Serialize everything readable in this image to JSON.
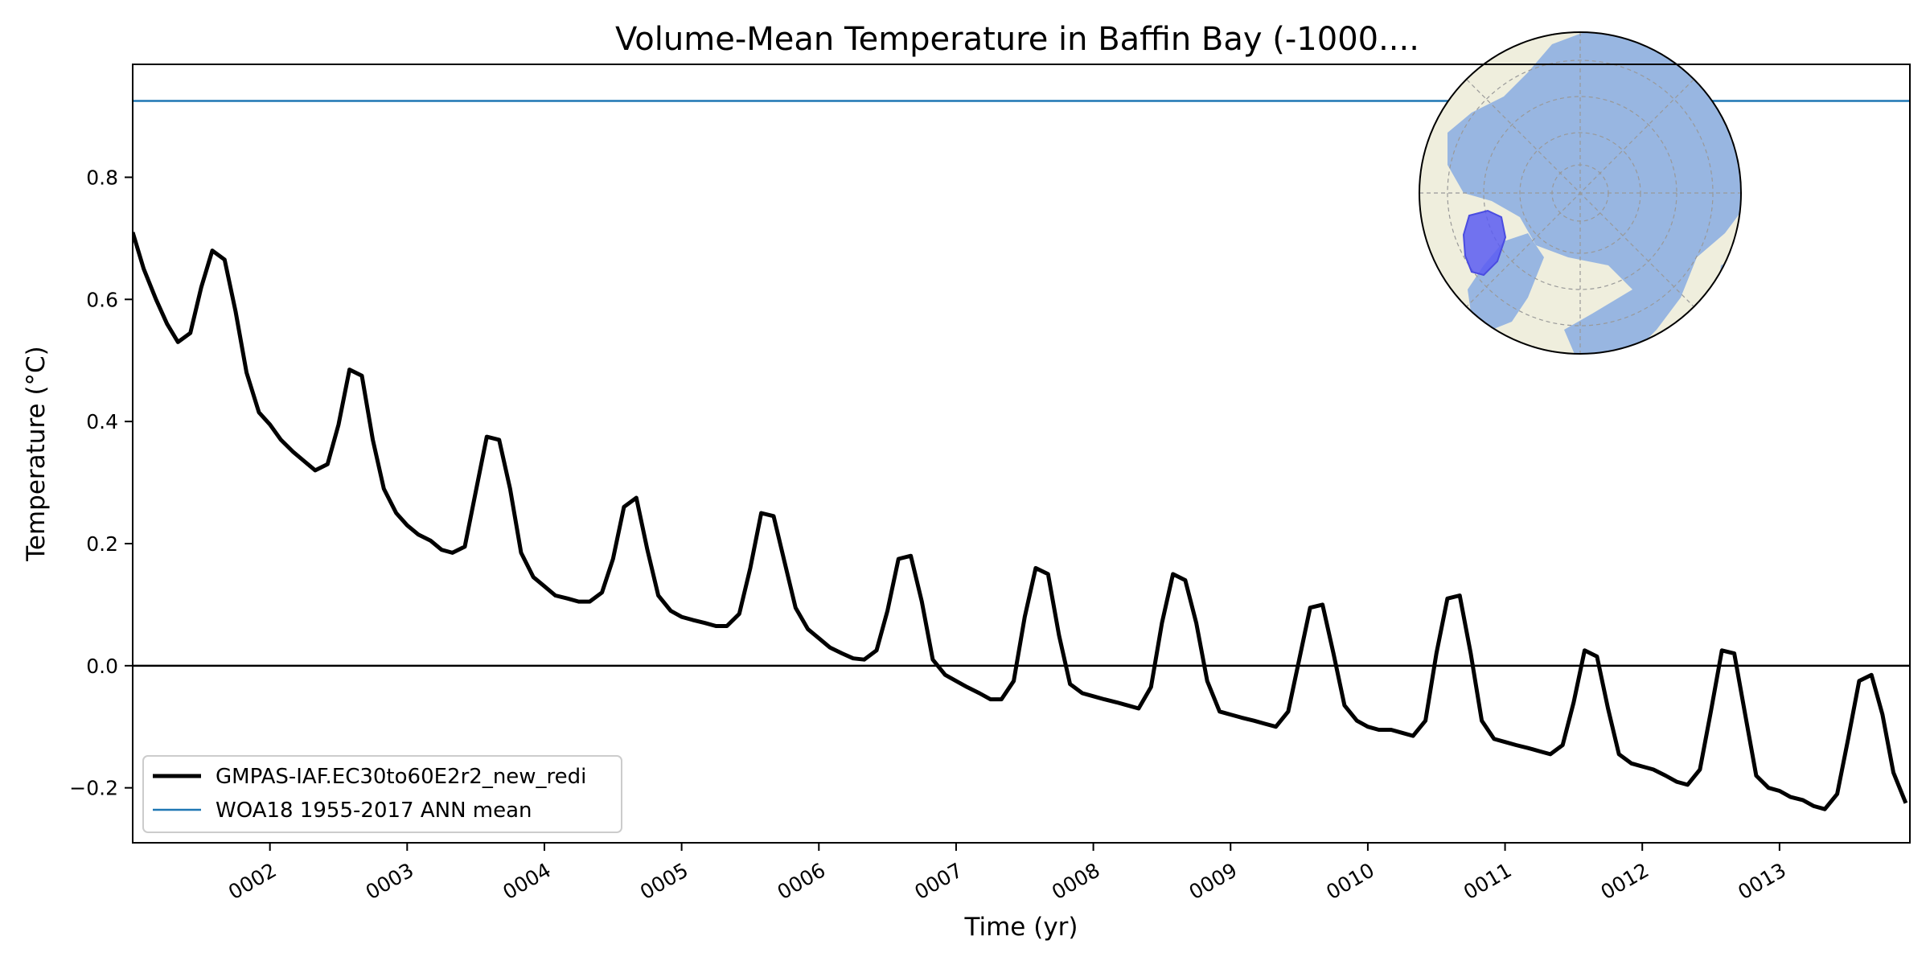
{
  "chart_data": {
    "type": "line",
    "title": "Volume-Mean Temperature in Baffin Bay (-1000....",
    "xlabel": "Time (yr)",
    "ylabel": "Temperature ($^\\circ$C)",
    "ylabel_display": "Temperature (°C)",
    "xlim": [
      1.0,
      13.95
    ],
    "ylim": [
      -0.29,
      0.985
    ],
    "x_ticks": [
      {
        "value": 2,
        "label": "0002"
      },
      {
        "value": 3,
        "label": "0003"
      },
      {
        "value": 4,
        "label": "0004"
      },
      {
        "value": 5,
        "label": "0005"
      },
      {
        "value": 6,
        "label": "0006"
      },
      {
        "value": 7,
        "label": "0007"
      },
      {
        "value": 8,
        "label": "0008"
      },
      {
        "value": 9,
        "label": "0009"
      },
      {
        "value": 10,
        "label": "0010"
      },
      {
        "value": 11,
        "label": "0011"
      },
      {
        "value": 12,
        "label": "0012"
      },
      {
        "value": 13,
        "label": "0013"
      }
    ],
    "y_ticks": [
      {
        "value": -0.2,
        "label": "−0.2"
      },
      {
        "value": 0.0,
        "label": "0.0"
      },
      {
        "value": 0.2,
        "label": "0.2"
      },
      {
        "value": 0.4,
        "label": "0.4"
      },
      {
        "value": 0.6,
        "label": "0.6"
      },
      {
        "value": 0.8,
        "label": "0.8"
      }
    ],
    "grid": false,
    "legend_position": "lower-left",
    "series": [
      {
        "name": "GMPAS-IAF.EC30to60E2r2_new_redi",
        "color": "#000000",
        "style": "solid-thick",
        "points": [
          [
            1.0,
            0.71
          ],
          [
            1.08,
            0.65
          ],
          [
            1.17,
            0.6
          ],
          [
            1.25,
            0.56
          ],
          [
            1.33,
            0.53
          ],
          [
            1.42,
            0.545
          ],
          [
            1.5,
            0.62
          ],
          [
            1.58,
            0.68
          ],
          [
            1.67,
            0.665
          ],
          [
            1.75,
            0.58
          ],
          [
            1.83,
            0.48
          ],
          [
            1.92,
            0.415
          ],
          [
            2.0,
            0.395
          ],
          [
            2.08,
            0.37
          ],
          [
            2.17,
            0.35
          ],
          [
            2.25,
            0.335
          ],
          [
            2.33,
            0.32
          ],
          [
            2.42,
            0.33
          ],
          [
            2.5,
            0.395
          ],
          [
            2.58,
            0.485
          ],
          [
            2.67,
            0.475
          ],
          [
            2.75,
            0.37
          ],
          [
            2.83,
            0.29
          ],
          [
            2.92,
            0.25
          ],
          [
            3.0,
            0.23
          ],
          [
            3.08,
            0.215
          ],
          [
            3.17,
            0.205
          ],
          [
            3.25,
            0.19
          ],
          [
            3.33,
            0.185
          ],
          [
            3.42,
            0.195
          ],
          [
            3.5,
            0.285
          ],
          [
            3.58,
            0.375
          ],
          [
            3.67,
            0.37
          ],
          [
            3.75,
            0.29
          ],
          [
            3.83,
            0.185
          ],
          [
            3.92,
            0.145
          ],
          [
            4.0,
            0.13
          ],
          [
            4.08,
            0.115
          ],
          [
            4.17,
            0.11
          ],
          [
            4.25,
            0.105
          ],
          [
            4.33,
            0.105
          ],
          [
            4.42,
            0.12
          ],
          [
            4.5,
            0.175
          ],
          [
            4.58,
            0.26
          ],
          [
            4.67,
            0.275
          ],
          [
            4.75,
            0.19
          ],
          [
            4.83,
            0.115
          ],
          [
            4.92,
            0.09
          ],
          [
            5.0,
            0.08
          ],
          [
            5.08,
            0.075
          ],
          [
            5.17,
            0.07
          ],
          [
            5.25,
            0.065
          ],
          [
            5.33,
            0.065
          ],
          [
            5.42,
            0.085
          ],
          [
            5.5,
            0.16
          ],
          [
            5.58,
            0.25
          ],
          [
            5.67,
            0.245
          ],
          [
            5.75,
            0.17
          ],
          [
            5.83,
            0.095
          ],
          [
            5.92,
            0.06
          ],
          [
            6.0,
            0.045
          ],
          [
            6.08,
            0.03
          ],
          [
            6.17,
            0.02
          ],
          [
            6.25,
            0.012
          ],
          [
            6.33,
            0.01
          ],
          [
            6.42,
            0.025
          ],
          [
            6.5,
            0.09
          ],
          [
            6.58,
            0.175
          ],
          [
            6.67,
            0.18
          ],
          [
            6.75,
            0.105
          ],
          [
            6.83,
            0.01
          ],
          [
            6.92,
            -0.015
          ],
          [
            7.0,
            -0.025
          ],
          [
            7.08,
            -0.035
          ],
          [
            7.17,
            -0.045
          ],
          [
            7.25,
            -0.055
          ],
          [
            7.33,
            -0.055
          ],
          [
            7.42,
            -0.025
          ],
          [
            7.5,
            0.08
          ],
          [
            7.58,
            0.16
          ],
          [
            7.67,
            0.15
          ],
          [
            7.75,
            0.05
          ],
          [
            7.83,
            -0.03
          ],
          [
            7.92,
            -0.045
          ],
          [
            8.0,
            -0.05
          ],
          [
            8.08,
            -0.055
          ],
          [
            8.17,
            -0.06
          ],
          [
            8.25,
            -0.065
          ],
          [
            8.33,
            -0.07
          ],
          [
            8.42,
            -0.035
          ],
          [
            8.5,
            0.07
          ],
          [
            8.58,
            0.15
          ],
          [
            8.67,
            0.14
          ],
          [
            8.75,
            0.07
          ],
          [
            8.83,
            -0.025
          ],
          [
            8.92,
            -0.075
          ],
          [
            9.0,
            -0.08
          ],
          [
            9.08,
            -0.085
          ],
          [
            9.17,
            -0.09
          ],
          [
            9.25,
            -0.095
          ],
          [
            9.33,
            -0.1
          ],
          [
            9.42,
            -0.075
          ],
          [
            9.5,
            0.01
          ],
          [
            9.58,
            0.095
          ],
          [
            9.67,
            0.1
          ],
          [
            9.75,
            0.02
          ],
          [
            9.83,
            -0.065
          ],
          [
            9.92,
            -0.09
          ],
          [
            10.0,
            -0.1
          ],
          [
            10.08,
            -0.105
          ],
          [
            10.17,
            -0.105
          ],
          [
            10.25,
            -0.11
          ],
          [
            10.33,
            -0.115
          ],
          [
            10.42,
            -0.09
          ],
          [
            10.5,
            0.02
          ],
          [
            10.58,
            0.11
          ],
          [
            10.67,
            0.115
          ],
          [
            10.75,
            0.02
          ],
          [
            10.83,
            -0.09
          ],
          [
            10.92,
            -0.12
          ],
          [
            11.0,
            -0.125
          ],
          [
            11.08,
            -0.13
          ],
          [
            11.17,
            -0.135
          ],
          [
            11.25,
            -0.14
          ],
          [
            11.33,
            -0.145
          ],
          [
            11.42,
            -0.13
          ],
          [
            11.5,
            -0.06
          ],
          [
            11.58,
            0.025
          ],
          [
            11.67,
            0.015
          ],
          [
            11.75,
            -0.07
          ],
          [
            11.83,
            -0.145
          ],
          [
            11.92,
            -0.16
          ],
          [
            12.0,
            -0.165
          ],
          [
            12.08,
            -0.17
          ],
          [
            12.17,
            -0.18
          ],
          [
            12.25,
            -0.19
          ],
          [
            12.33,
            -0.195
          ],
          [
            12.42,
            -0.17
          ],
          [
            12.5,
            -0.075
          ],
          [
            12.58,
            0.025
          ],
          [
            12.67,
            0.02
          ],
          [
            12.75,
            -0.08
          ],
          [
            12.83,
            -0.18
          ],
          [
            12.92,
            -0.2
          ],
          [
            13.0,
            -0.205
          ],
          [
            13.08,
            -0.215
          ],
          [
            13.17,
            -0.22
          ],
          [
            13.25,
            -0.23
          ],
          [
            13.33,
            -0.235
          ],
          [
            13.42,
            -0.21
          ],
          [
            13.5,
            -0.12
          ],
          [
            13.58,
            -0.025
          ],
          [
            13.67,
            -0.015
          ],
          [
            13.75,
            -0.08
          ],
          [
            13.83,
            -0.175
          ],
          [
            13.92,
            -0.225
          ]
        ]
      },
      {
        "name": "WOA18 1955-2017 ANN mean",
        "color": "#1f77b4",
        "style": "solid-thin",
        "constant": 0.925
      }
    ],
    "reference_lines": [
      {
        "y": 0.0,
        "color": "#000000"
      }
    ]
  },
  "inset_map": {
    "type": "north-polar-stereographic",
    "highlighted_region": "Baffin Bay",
    "land_color": "#efeedd",
    "ocean_color": "#98b6e1",
    "region_color": "#5a5cf2"
  }
}
